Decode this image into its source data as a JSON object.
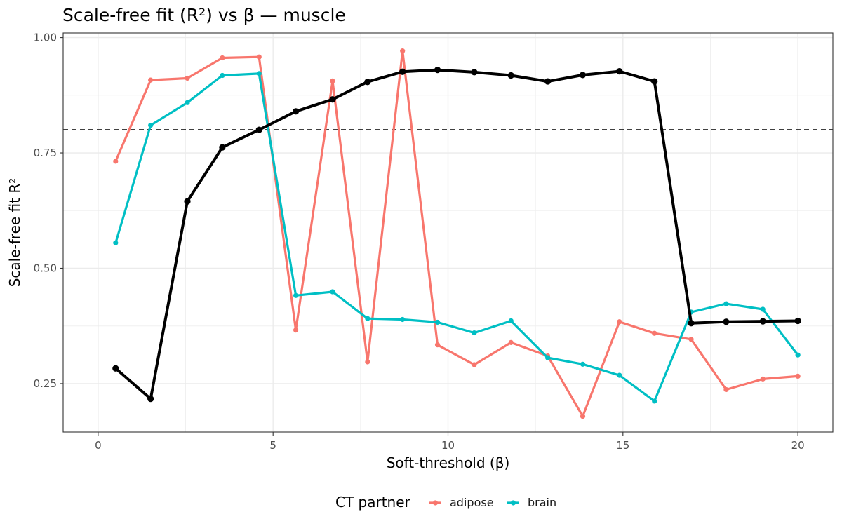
{
  "chart_data": {
    "type": "line",
    "title": "Scale-free fit (R²) vs β — muscle",
    "xlabel": "Soft-threshold (β)",
    "ylabel": "Scale-free fit R²",
    "xlim": [
      -1,
      21
    ],
    "ylim": [
      0.145,
      1.01
    ],
    "x_ticks": [
      0,
      5,
      10,
      15,
      20
    ],
    "x_tick_labels": [
      "0",
      "5",
      "10",
      "15",
      "20"
    ],
    "y_ticks": [
      0.25,
      0.5,
      0.75,
      1.0
    ],
    "y_tick_labels": [
      "0.25",
      "0.50",
      "0.75",
      "1.00"
    ],
    "grid": true,
    "threshold_line": {
      "y": 0.8,
      "style": "dashed",
      "color": "#000000"
    },
    "legend": {
      "title": "CT partner",
      "position": "bottom",
      "entries": [
        {
          "label": "adipose",
          "color": "#F8766D"
        },
        {
          "label": "brain",
          "color": "#00BFC4"
        }
      ]
    },
    "series": [
      {
        "key": "muscle",
        "color": "#000000",
        "x": [
          0.5,
          1.5,
          2.55,
          3.55,
          4.6,
          5.65,
          6.7,
          7.7,
          8.7,
          9.7,
          10.75,
          11.8,
          12.85,
          13.85,
          14.9,
          15.9,
          16.95,
          17.95,
          19.0,
          20.0
        ],
        "values": [
          0.283,
          0.217,
          0.645,
          0.762,
          0.8,
          0.84,
          0.866,
          0.904,
          0.926,
          0.93,
          0.925,
          0.918,
          0.905,
          0.919,
          0.927,
          0.905,
          0.381,
          0.384,
          0.385,
          0.386
        ]
      },
      {
        "name": "adipose",
        "color": "#F8766D",
        "x": [
          0.5,
          1.5,
          2.55,
          3.55,
          4.6,
          5.65,
          6.7,
          7.7,
          8.7,
          9.7,
          10.75,
          11.8,
          12.85,
          13.85,
          14.9,
          15.9,
          16.95,
          17.95,
          19.0,
          20.0
        ],
        "values": [
          0.732,
          0.908,
          0.912,
          0.956,
          0.958,
          0.366,
          0.906,
          0.297,
          0.971,
          0.334,
          0.291,
          0.339,
          0.31,
          0.179,
          0.384,
          0.359,
          0.346,
          0.237,
          0.26,
          0.266
        ]
      },
      {
        "name": "brain",
        "color": "#00BFC4",
        "x": [
          0.5,
          1.5,
          2.55,
          3.55,
          4.6,
          5.65,
          6.7,
          7.7,
          8.7,
          9.7,
          10.75,
          11.8,
          12.85,
          13.85,
          14.9,
          15.9,
          16.95,
          17.95,
          19.0,
          20.0
        ],
        "values": [
          0.555,
          0.81,
          0.859,
          0.918,
          0.922,
          0.441,
          0.449,
          0.391,
          0.389,
          0.383,
          0.36,
          0.386,
          0.306,
          0.292,
          0.268,
          0.212,
          0.405,
          0.423,
          0.411,
          0.312
        ]
      }
    ]
  }
}
